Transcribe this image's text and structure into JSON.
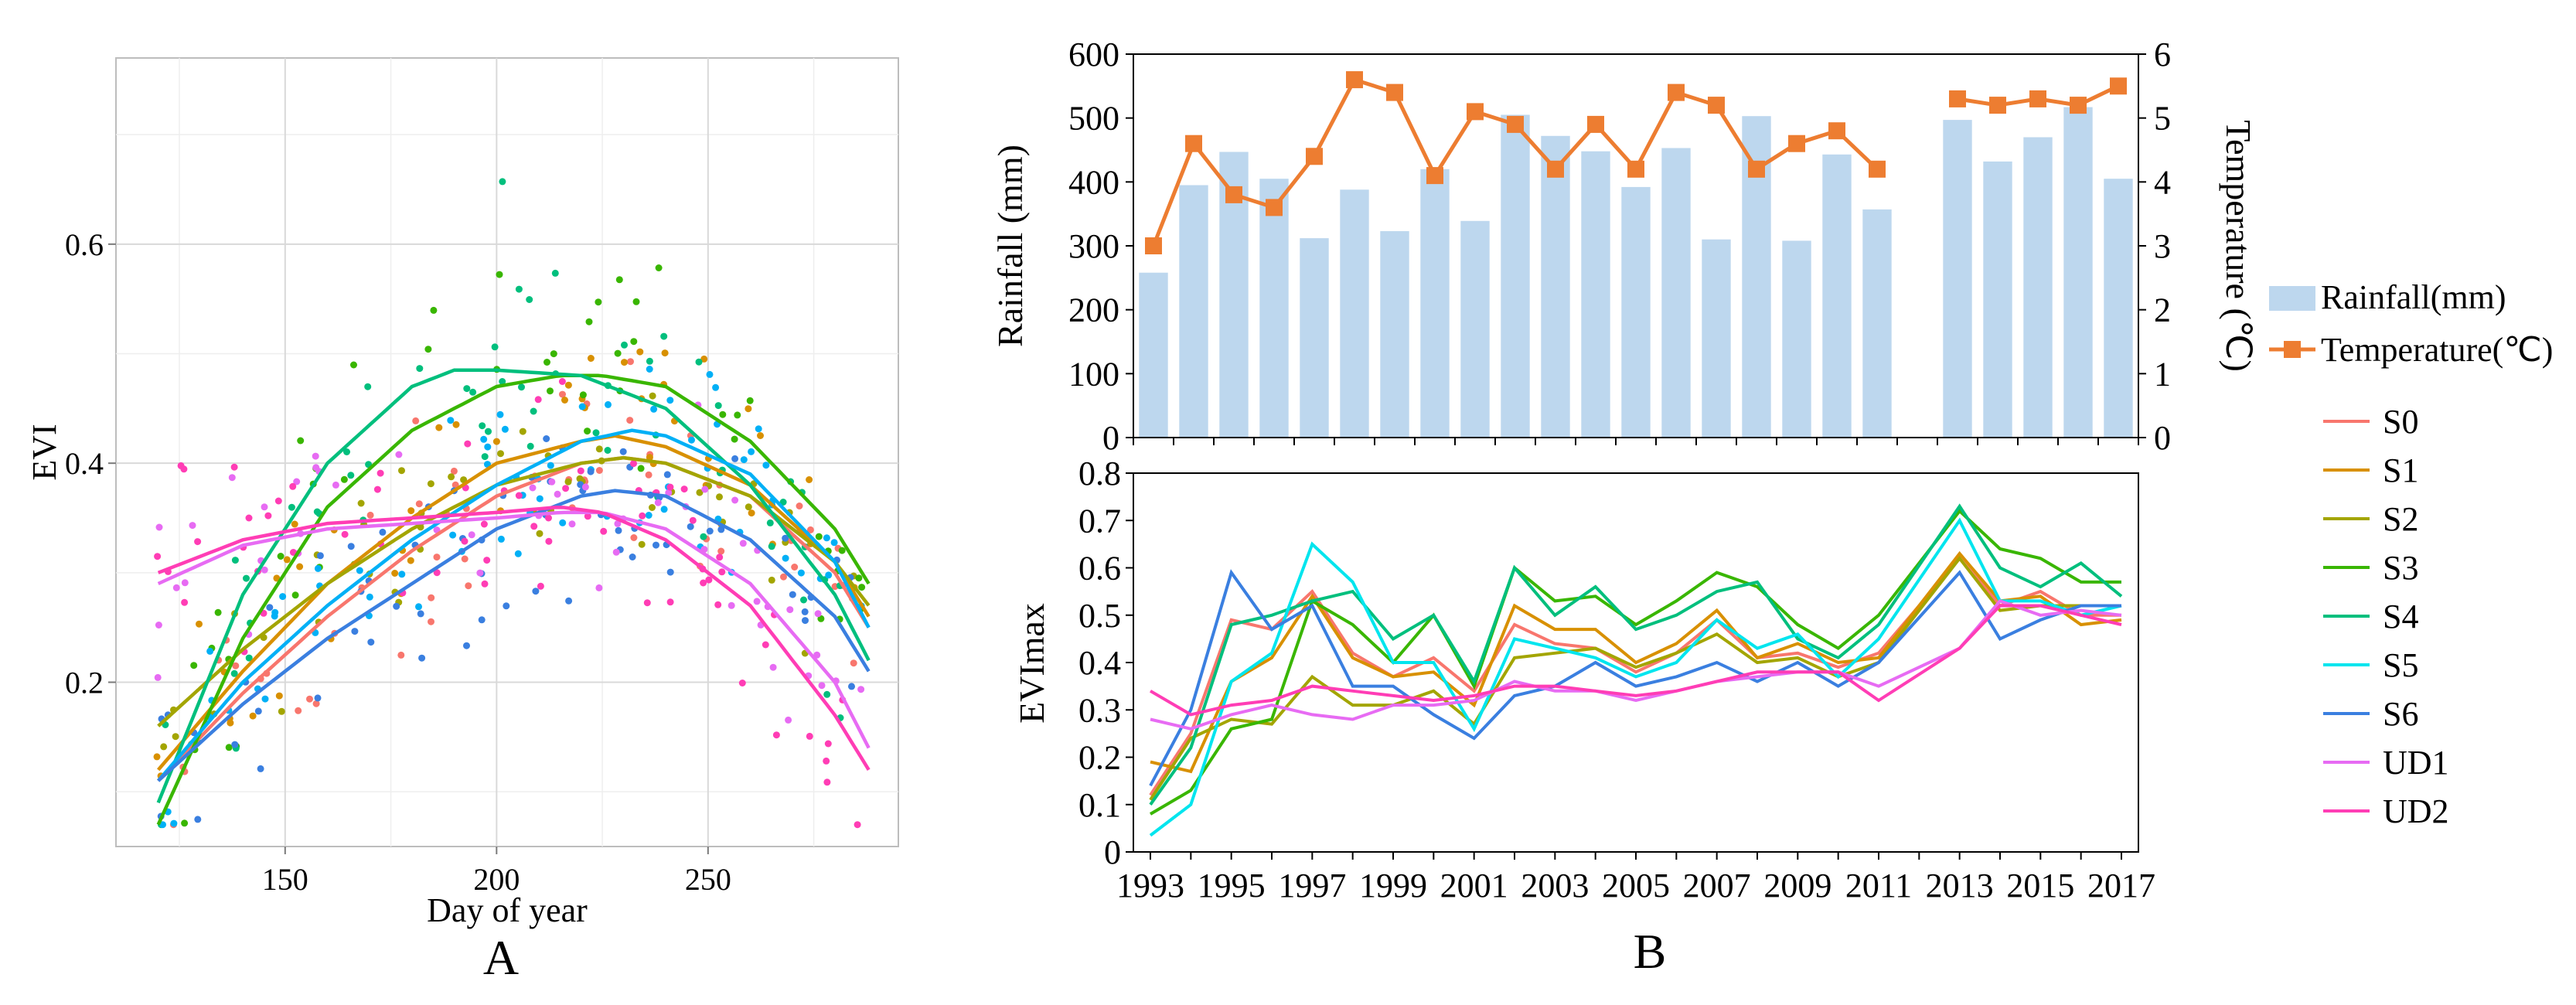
{
  "chart_data": [
    {
      "id": "A",
      "type": "scatter",
      "panel_label": "A",
      "xlabel": "Day of year",
      "ylabel": "EVI",
      "xlim": [
        110,
        295
      ],
      "ylim": [
        0.05,
        0.77
      ],
      "xticks": [
        150,
        200,
        250
      ],
      "yticks": [
        0.2,
        0.4,
        0.6
      ],
      "grid": true,
      "fit_curves": [
        {
          "name": "S0",
          "color": "#F8766D",
          "x": [
            120,
            140,
            160,
            180,
            200,
            220,
            230,
            240,
            260,
            280,
            288
          ],
          "y": [
            0.11,
            0.19,
            0.26,
            0.32,
            0.37,
            0.4,
            0.405,
            0.4,
            0.37,
            0.3,
            0.25
          ]
        },
        {
          "name": "S1",
          "color": "#D89000",
          "x": [
            120,
            140,
            160,
            180,
            200,
            220,
            228,
            240,
            260,
            280,
            288
          ],
          "y": [
            0.12,
            0.21,
            0.29,
            0.35,
            0.4,
            0.42,
            0.425,
            0.415,
            0.38,
            0.31,
            0.26
          ]
        },
        {
          "name": "S2",
          "color": "#A3A500",
          "x": [
            120,
            140,
            160,
            180,
            200,
            220,
            230,
            240,
            260,
            280,
            288
          ],
          "y": [
            0.16,
            0.23,
            0.29,
            0.34,
            0.38,
            0.4,
            0.405,
            0.4,
            0.37,
            0.31,
            0.27
          ]
        },
        {
          "name": "S3",
          "color": "#39B600",
          "x": [
            120,
            140,
            160,
            180,
            200,
            215,
            225,
            240,
            260,
            280,
            288
          ],
          "y": [
            0.07,
            0.24,
            0.36,
            0.43,
            0.47,
            0.48,
            0.48,
            0.47,
            0.42,
            0.34,
            0.29
          ]
        },
        {
          "name": "S4",
          "color": "#00BF7D",
          "x": [
            120,
            140,
            160,
            180,
            190,
            200,
            220,
            240,
            260,
            280,
            288
          ],
          "y": [
            0.09,
            0.28,
            0.4,
            0.47,
            0.485,
            0.485,
            0.48,
            0.45,
            0.38,
            0.28,
            0.22
          ]
        },
        {
          "name": "S5",
          "color": "#00B0F6",
          "x": [
            120,
            140,
            160,
            180,
            200,
            220,
            232,
            240,
            260,
            280,
            288
          ],
          "y": [
            0.11,
            0.2,
            0.27,
            0.33,
            0.38,
            0.42,
            0.43,
            0.425,
            0.39,
            0.31,
            0.25
          ]
        },
        {
          "name": "S6",
          "color": "#3A7FE0",
          "x": [
            120,
            140,
            160,
            180,
            200,
            220,
            228,
            240,
            260,
            280,
            288
          ],
          "y": [
            0.11,
            0.18,
            0.24,
            0.29,
            0.34,
            0.37,
            0.375,
            0.37,
            0.33,
            0.26,
            0.21
          ]
        },
        {
          "name": "UD1",
          "color": "#E76BF3",
          "x": [
            120,
            140,
            160,
            180,
            200,
            215,
            225,
            240,
            260,
            280,
            288
          ],
          "y": [
            0.29,
            0.325,
            0.34,
            0.345,
            0.35,
            0.355,
            0.355,
            0.34,
            0.29,
            0.2,
            0.14
          ]
        },
        {
          "name": "UD2",
          "color": "#FF3DB5",
          "x": [
            120,
            140,
            160,
            180,
            200,
            215,
            225,
            240,
            260,
            280,
            288
          ],
          "y": [
            0.3,
            0.33,
            0.345,
            0.35,
            0.355,
            0.36,
            0.355,
            0.33,
            0.27,
            0.17,
            0.12
          ]
        }
      ],
      "point_spread": 0.055
    },
    {
      "id": "B-top",
      "type": "bar",
      "panel_label": "B",
      "title": "",
      "ylabel": "Rainfall (mm)",
      "y2label": "Temperature (℃)",
      "ylim": [
        0,
        600
      ],
      "yticks": [
        0,
        100,
        200,
        300,
        400,
        500,
        600
      ],
      "y2lim": [
        0,
        6
      ],
      "y2ticks": [
        0,
        1,
        2,
        3,
        4,
        5,
        6
      ],
      "x": [
        1993,
        1994,
        1995,
        1996,
        1997,
        1998,
        1999,
        2000,
        2001,
        2002,
        2003,
        2004,
        2005,
        2006,
        2007,
        2008,
        2009,
        2010,
        2011,
        2012,
        2013,
        2014,
        2015,
        2016,
        2017
      ],
      "series": [
        {
          "name": "Rainfall(mm)",
          "kind": "bar",
          "color": "#BDD7EE",
          "values": [
            258,
            395,
            447,
            405,
            312,
            388,
            323,
            420,
            339,
            505,
            472,
            448,
            392,
            453,
            310,
            503,
            308,
            443,
            357,
            null,
            497,
            432,
            470,
            517,
            405
          ]
        },
        {
          "name": "Temperature(℃)",
          "kind": "line",
          "color": "#ED7D31",
          "values": [
            3.0,
            4.6,
            3.8,
            3.6,
            4.4,
            5.6,
            5.4,
            4.1,
            5.1,
            4.9,
            4.2,
            4.9,
            4.2,
            5.4,
            5.2,
            4.2,
            4.6,
            4.8,
            4.2,
            null,
            5.3,
            5.2,
            5.3,
            5.2,
            5.5
          ]
        }
      ]
    },
    {
      "id": "B-bottom",
      "type": "line",
      "ylabel": "EVImax",
      "ylim": [
        0,
        0.8
      ],
      "yticks": [
        "0",
        "0.1",
        "0.2",
        "0.3",
        "0.4",
        "0.5",
        "0.6",
        "0.7",
        "0.8"
      ],
      "x": [
        1993,
        1994,
        1995,
        1996,
        1997,
        1998,
        1999,
        2000,
        2001,
        2002,
        2003,
        2004,
        2005,
        2006,
        2007,
        2008,
        2009,
        2010,
        2011,
        2013,
        2014,
        2015,
        2016,
        2017
      ],
      "xtick_labels": [
        "1993",
        "1995",
        "1997",
        "1999",
        "2001",
        "2003",
        "2005",
        "2007",
        "2009",
        "2011",
        "2013",
        "2015",
        "2017"
      ],
      "series": [
        {
          "name": "S0",
          "color": "#F8766D",
          "values": [
            0.12,
            0.25,
            0.49,
            0.47,
            0.55,
            0.42,
            0.37,
            0.41,
            0.34,
            0.48,
            0.44,
            0.43,
            0.38,
            0.42,
            0.49,
            0.41,
            0.42,
            0.39,
            0.42,
            0.62,
            0.52,
            0.55,
            0.5,
            0.5
          ]
        },
        {
          "name": "S1",
          "color": "#D89000",
          "values": [
            0.19,
            0.17,
            0.36,
            0.41,
            0.54,
            0.41,
            0.37,
            0.38,
            0.31,
            0.52,
            0.47,
            0.47,
            0.4,
            0.44,
            0.51,
            0.41,
            0.44,
            0.4,
            0.41,
            0.63,
            0.53,
            0.54,
            0.48,
            0.49
          ]
        },
        {
          "name": "S2",
          "color": "#A3A500",
          "values": [
            0.11,
            0.24,
            0.28,
            0.27,
            0.37,
            0.31,
            0.31,
            0.34,
            0.27,
            0.41,
            0.42,
            0.43,
            0.39,
            0.42,
            0.46,
            0.4,
            0.41,
            0.37,
            0.4,
            0.62,
            0.51,
            0.52,
            0.52,
            0.52
          ]
        },
        {
          "name": "S3",
          "color": "#39B600",
          "values": [
            0.08,
            0.13,
            0.26,
            0.28,
            0.53,
            0.48,
            0.4,
            0.5,
            0.35,
            0.6,
            0.53,
            0.54,
            0.48,
            0.53,
            0.59,
            0.56,
            0.48,
            0.43,
            0.5,
            0.72,
            0.64,
            0.62,
            0.57,
            0.57
          ]
        },
        {
          "name": "S4",
          "color": "#00BF7D",
          "values": [
            0.1,
            0.22,
            0.48,
            0.5,
            0.53,
            0.55,
            0.45,
            0.5,
            0.36,
            0.6,
            0.5,
            0.56,
            0.47,
            0.5,
            0.55,
            0.57,
            0.45,
            0.41,
            0.48,
            0.73,
            0.6,
            0.56,
            0.61,
            0.54
          ]
        },
        {
          "name": "S5",
          "color": "#00E5EE",
          "values": [
            0.035,
            0.1,
            0.36,
            0.42,
            0.65,
            0.57,
            0.4,
            0.4,
            0.26,
            0.45,
            0.43,
            0.41,
            0.37,
            0.4,
            0.49,
            0.43,
            0.46,
            0.37,
            0.45,
            0.7,
            0.53,
            0.53,
            0.5,
            0.52
          ]
        },
        {
          "name": "S6",
          "color": "#3A7FE0",
          "values": [
            0.14,
            0.3,
            0.59,
            0.47,
            0.52,
            0.35,
            0.35,
            0.29,
            0.24,
            0.33,
            0.35,
            0.4,
            0.35,
            0.37,
            0.4,
            0.36,
            0.4,
            0.35,
            0.4,
            0.59,
            0.45,
            0.49,
            0.52,
            0.52
          ]
        },
        {
          "name": "UD1",
          "color": "#E76BF3",
          "values": [
            0.28,
            0.26,
            0.29,
            0.31,
            0.29,
            0.28,
            0.31,
            0.31,
            0.32,
            0.36,
            0.34,
            0.34,
            0.32,
            0.34,
            0.36,
            0.37,
            0.38,
            0.38,
            0.35,
            0.43,
            0.53,
            0.5,
            0.51,
            0.5
          ]
        },
        {
          "name": "UD2",
          "color": "#FF3DB5",
          "values": [
            0.34,
            0.29,
            0.31,
            0.32,
            0.35,
            0.34,
            0.33,
            0.32,
            0.33,
            0.35,
            0.35,
            0.34,
            0.33,
            0.34,
            0.36,
            0.38,
            0.38,
            0.38,
            0.32,
            0.43,
            0.52,
            0.52,
            0.5,
            0.48
          ]
        }
      ]
    }
  ],
  "legend": {
    "items": [
      "Rainfall(mm)",
      "Temperature(℃)",
      "S0",
      "S1",
      "S2",
      "S3",
      "S4",
      "S5",
      "S6",
      "UD1",
      "UD2"
    ]
  }
}
